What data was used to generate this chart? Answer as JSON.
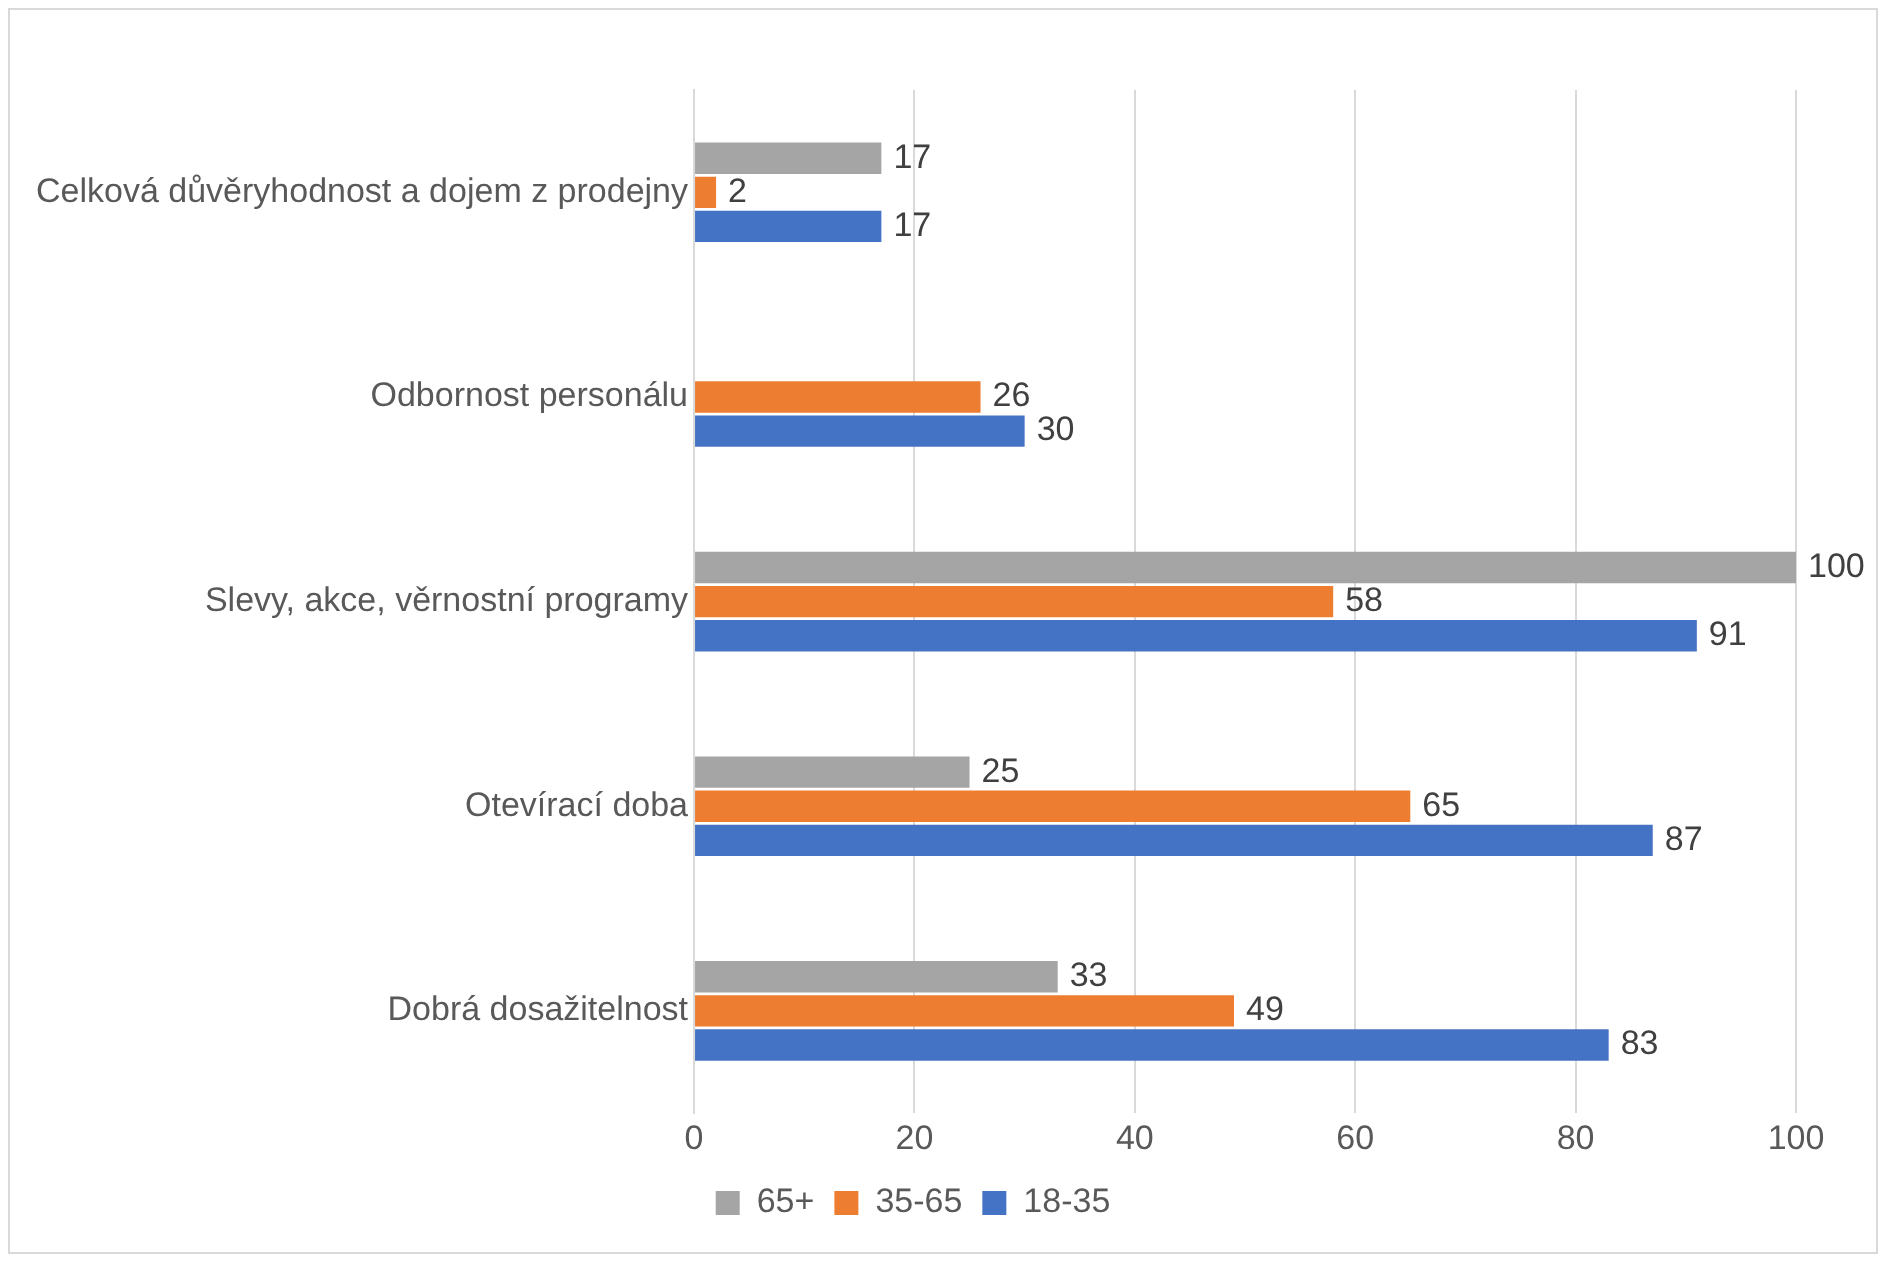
{
  "chart_data": {
    "type": "bar",
    "orientation": "horizontal",
    "categories": [
      "Celková důvěryhodnost a dojem z prodejny",
      "Odbornost personálu",
      "Slevy, akce, věrnostní programy",
      "Otevírací doba",
      "Dobrá dosažitelnost"
    ],
    "series": [
      {
        "name": "65+",
        "color": "#a5a5a5",
        "values": [
          17,
          null,
          100,
          25,
          33
        ]
      },
      {
        "name": "35-65",
        "color": "#ed7d31",
        "values": [
          2,
          26,
          58,
          65,
          49
        ]
      },
      {
        "name": "18-35",
        "color": "#4472c4",
        "values": [
          17,
          30,
          91,
          87,
          83
        ]
      }
    ],
    "xlim": [
      0,
      100
    ],
    "xticks": [
      0,
      20,
      40,
      60,
      80,
      100
    ],
    "grid": "x",
    "legend": "bottom",
    "data_labels": true
  }
}
